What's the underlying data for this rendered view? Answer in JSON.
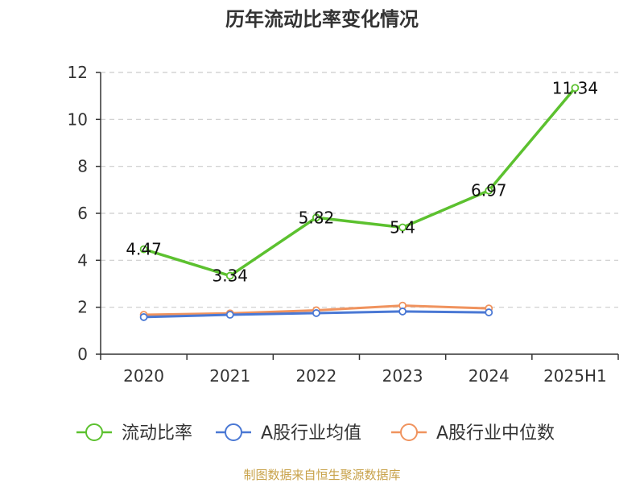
{
  "chart_data": {
    "type": "line",
    "title": "历年流动比率变化情况",
    "categories": [
      "2020",
      "2021",
      "2022",
      "2023",
      "2024",
      "2025H1"
    ],
    "ylim": [
      0,
      12
    ],
    "yticks": [
      0,
      2,
      4,
      6,
      8,
      10,
      12
    ],
    "grid": true,
    "legend_position": "bottom",
    "series": [
      {
        "name": "流动比率",
        "color": "#5cc12f",
        "values": [
          4.47,
          3.34,
          5.82,
          5.4,
          6.97,
          11.34
        ],
        "labels": [
          "4.47",
          "3.34",
          "5.82",
          "5.4",
          "6.97",
          "11.34"
        ]
      },
      {
        "name": "A股行业均值",
        "color": "#4a78d4",
        "values": [
          1.58,
          1.68,
          1.75,
          1.82,
          1.78,
          null
        ]
      },
      {
        "name": "A股行业中位数",
        "color": "#f0935e",
        "values": [
          1.68,
          1.74,
          1.87,
          2.07,
          1.95,
          null
        ]
      }
    ],
    "source": "制图数据来自恒生聚源数据库"
  }
}
